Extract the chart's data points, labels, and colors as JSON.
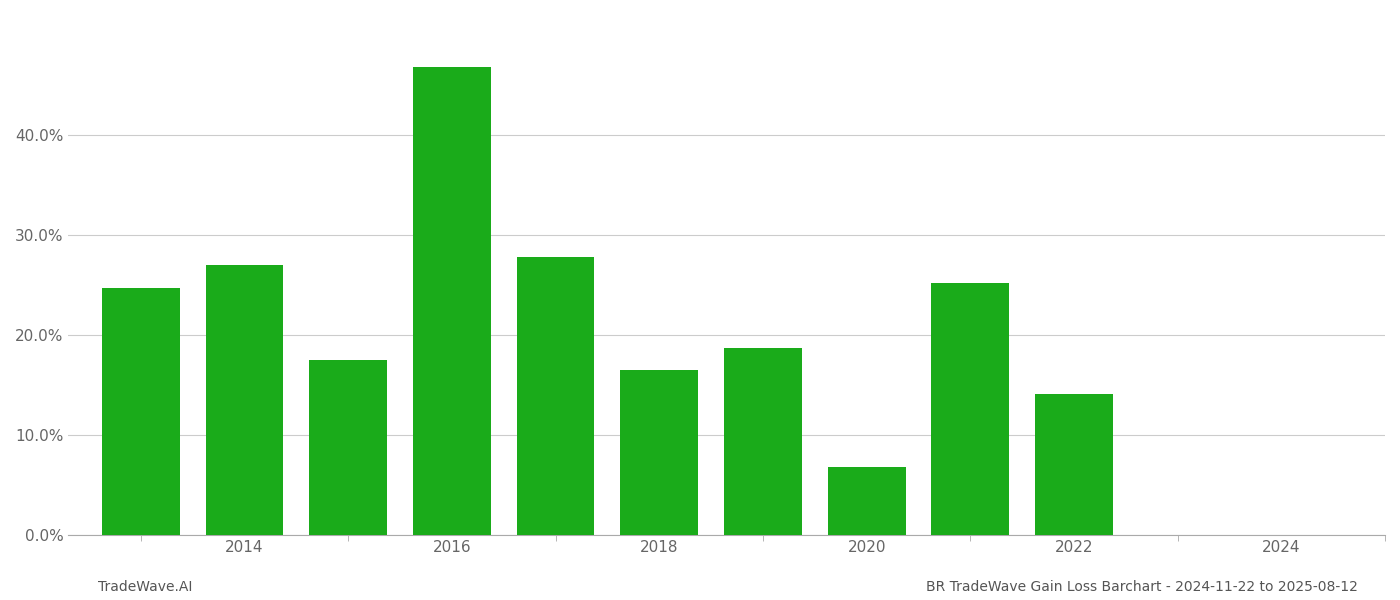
{
  "years": [
    2013,
    2014,
    2015,
    2016,
    2017,
    2018,
    2019,
    2020,
    2021,
    2022,
    2023
  ],
  "values": [
    0.247,
    0.27,
    0.175,
    0.468,
    0.278,
    0.165,
    0.187,
    0.068,
    0.252,
    0.141,
    0.0
  ],
  "bar_color": "#1aab1a",
  "background_color": "#ffffff",
  "grid_color": "#cccccc",
  "footer_left": "TradeWave.AI",
  "footer_right": "BR TradeWave Gain Loss Barchart - 2024-11-22 to 2025-08-12",
  "ylim": [
    0,
    0.52
  ],
  "yticks": [
    0.0,
    0.1,
    0.2,
    0.3,
    0.4
  ],
  "xlabel_ticks": [
    2014,
    2016,
    2018,
    2020,
    2022,
    2024
  ],
  "all_xticks": [
    2013,
    2014,
    2015,
    2016,
    2017,
    2018,
    2019,
    2020,
    2021,
    2022,
    2023,
    2024,
    2025
  ],
  "footer_fontsize": 10,
  "tick_fontsize": 11,
  "bar_width": 0.75
}
